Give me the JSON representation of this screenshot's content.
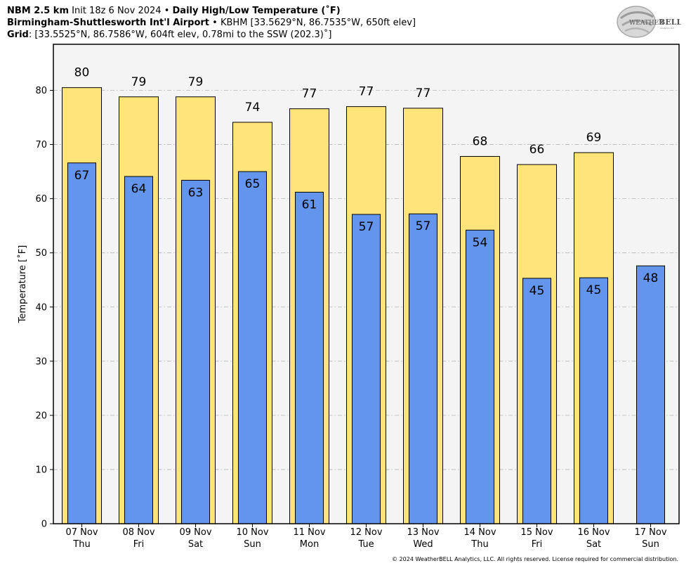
{
  "header": {
    "model": "NBM 2.5 km",
    "init": "Init 18z 6 Nov 2024",
    "bullet": "•",
    "product": "Daily High/Low Temperature (˚F)",
    "station_name": "Birmingham-Shuttlesworth Int'l Airport",
    "station_info": "KBHM [33.5629°N, 86.7535°W, 650ft elev]",
    "grid_label": "Grid",
    "grid_info": ": [33.5525°N, 86.7586°W, 604ft elev, 0.78mi to the SSW (202.3)˚]"
  },
  "logo": {
    "text_1": "WEATHER",
    "text_2": "BELL",
    "sub": "Analytics LLC"
  },
  "copyright": "© 2024 WeatherBELL Analytics, LLC. All rights reserved. License required for commercial distribution.",
  "colors": {
    "high": "#FFE47A",
    "low": "#6495ED",
    "plot_bg": "#F4F4F4",
    "grid": "#B4B4B4"
  },
  "chart_data": {
    "type": "bar",
    "categories": [
      [
        "07 Nov",
        "Thu"
      ],
      [
        "08 Nov",
        "Fri"
      ],
      [
        "09 Nov",
        "Sat"
      ],
      [
        "10 Nov",
        "Sun"
      ],
      [
        "11 Nov",
        "Mon"
      ],
      [
        "12 Nov",
        "Tue"
      ],
      [
        "13 Nov",
        "Wed"
      ],
      [
        "14 Nov",
        "Thu"
      ],
      [
        "15 Nov",
        "Fri"
      ],
      [
        "16 Nov",
        "Sat"
      ],
      [
        "17 Nov",
        "Sun"
      ]
    ],
    "series": [
      {
        "values": [
          80.5,
          78.8,
          78.8,
          74.1,
          76.6,
          77.0,
          76.7,
          67.8,
          66.3,
          68.5,
          null
        ],
        "labels": [
          "80",
          "79",
          "79",
          "74",
          "77",
          "77",
          "77",
          "68",
          "66",
          "69",
          null
        ]
      },
      {
        "values": [
          66.6,
          64.1,
          63.4,
          65.0,
          61.2,
          57.1,
          57.2,
          54.2,
          45.3,
          45.4,
          47.6
        ],
        "labels": [
          "67",
          "64",
          "63",
          "65",
          "61",
          "57",
          "57",
          "54",
          "45",
          "45",
          "48"
        ]
      }
    ],
    "ylabel": "Temperature [˚F]",
    "ylim": [
      0,
      88.5
    ],
    "yticks": [
      0,
      10,
      20,
      30,
      40,
      50,
      60,
      70,
      80
    ],
    "grid": true
  }
}
